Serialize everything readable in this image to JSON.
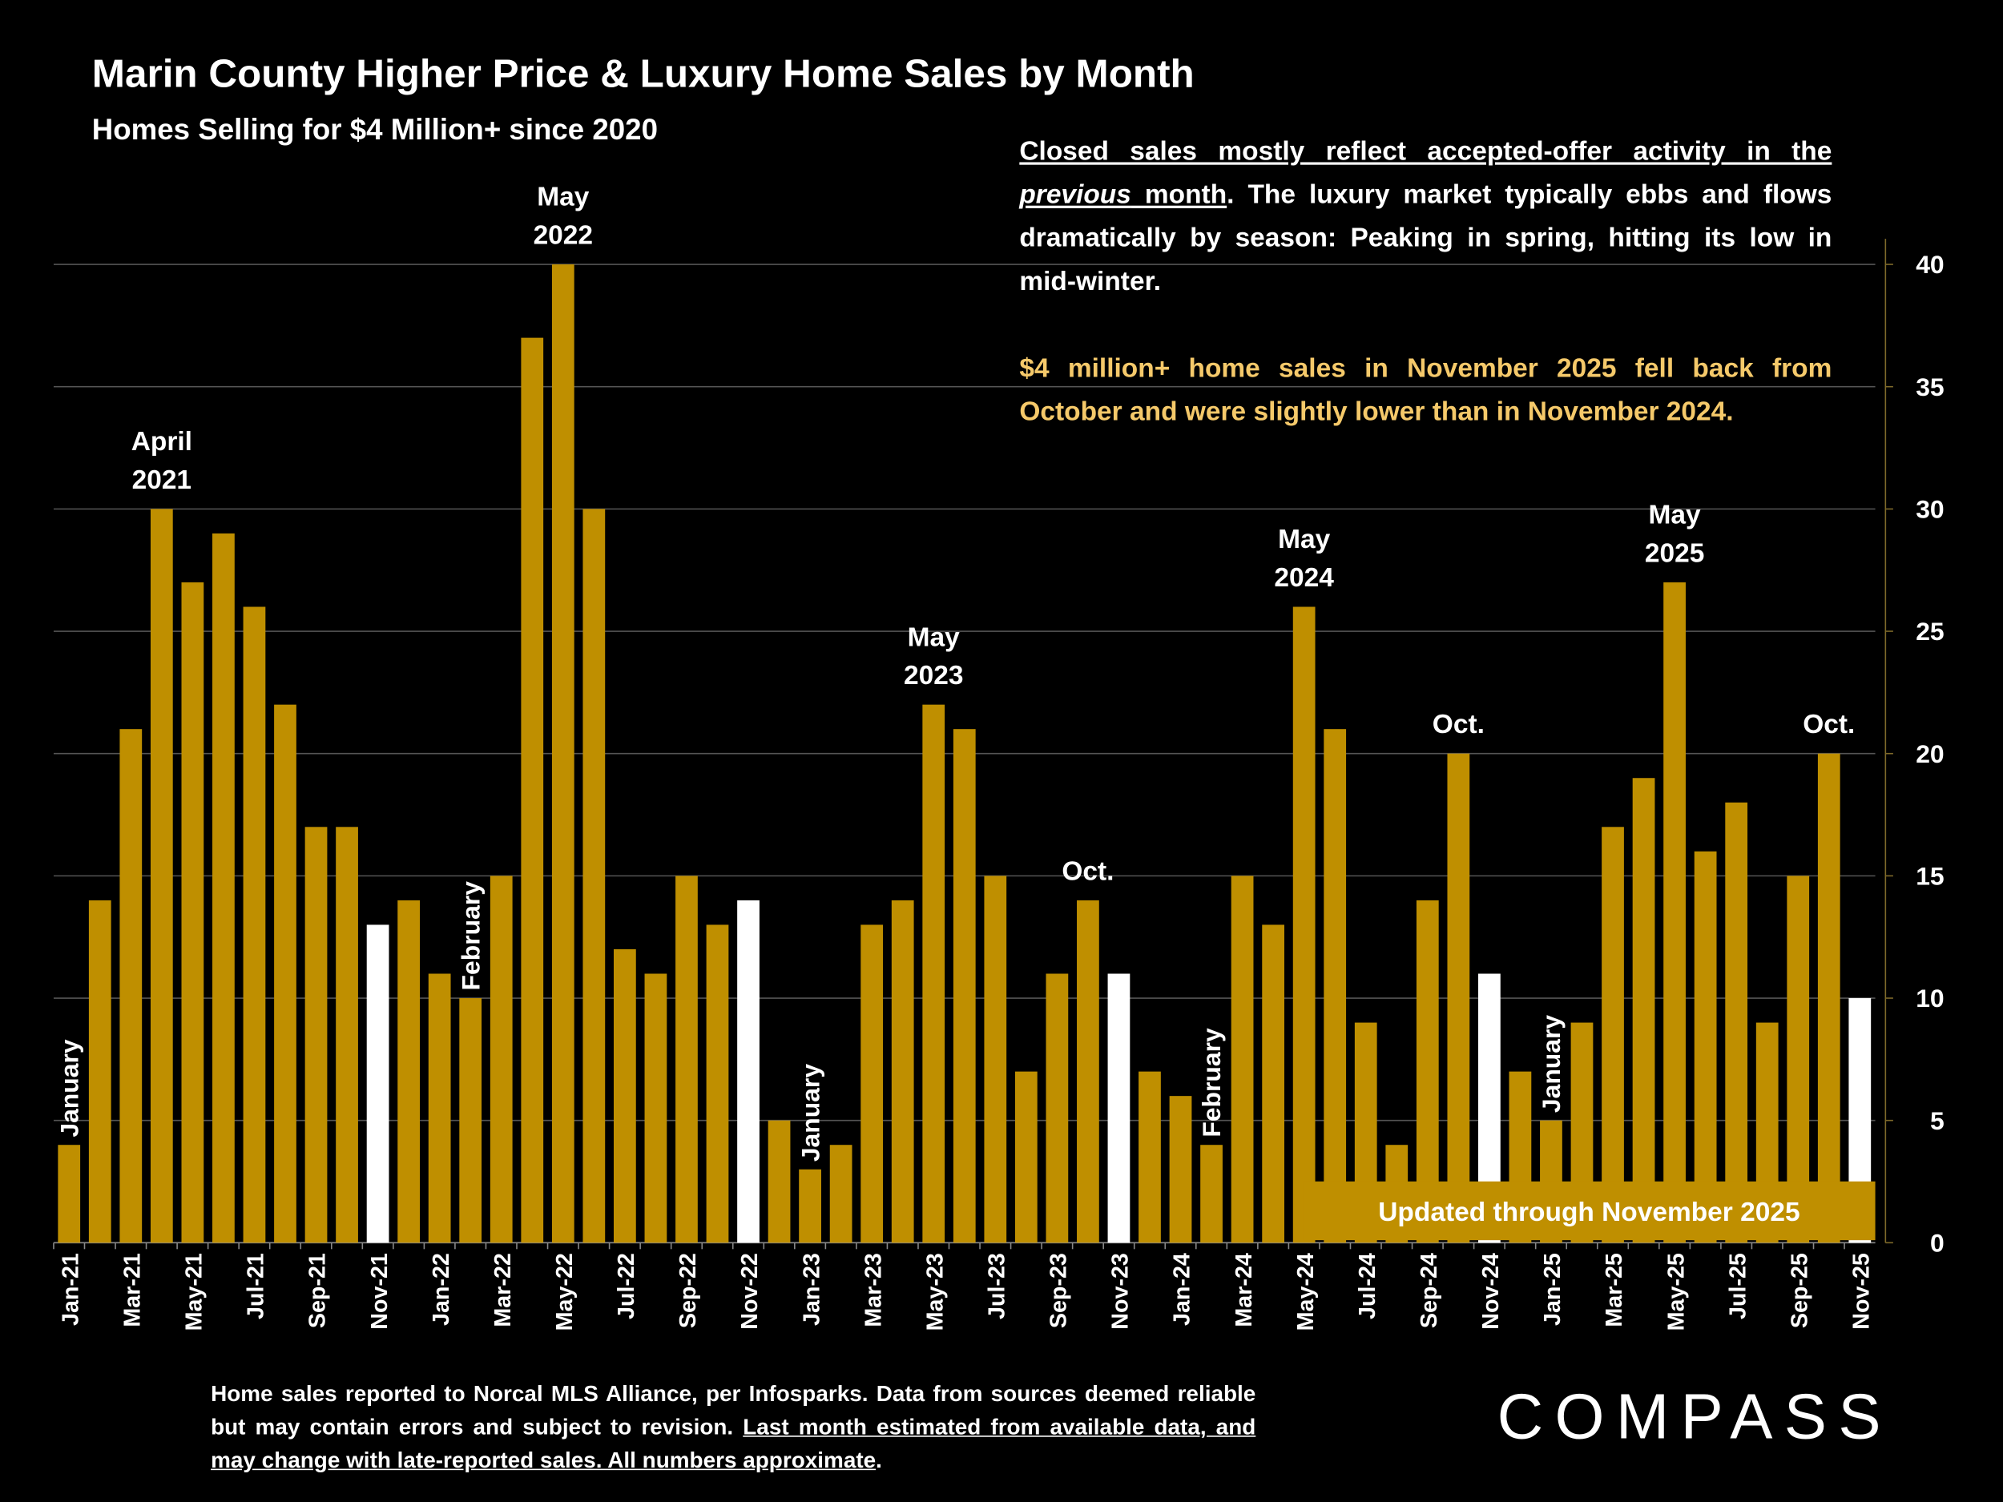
{
  "header": {
    "title": "Marin County Higher Price & Luxury Home Sales by Month",
    "subtitle": "Homes Selling for $4 Million+ since 2020"
  },
  "note": {
    "paragraph1": [
      {
        "text": "Closed sales mostly reflect accepted-offer activity in the ",
        "style": "underline"
      },
      {
        "text": "previous",
        "style": "underline-italic"
      },
      {
        "text": " month",
        "style": "underline"
      },
      {
        "text": ". The luxury market typically ebbs and flows dramatically by season: Peaking in spring, hitting its low in mid-winter.",
        "style": "plain"
      }
    ],
    "paragraph2": "$4 million+ home sales in November 2025 fell back from October and were slightly lower than in November 2024."
  },
  "badge": "Updated through November 2025",
  "footnote": [
    {
      "text": "Home sales reported to Norcal MLS Alliance, per Infosparks. Data from sources deemed reliable but may contain errors and subject to revision. ",
      "style": "plain"
    },
    {
      "text": "Last month estimated from available data, and may change with late-reported sales. All numbers approximate",
      "style": "underline"
    },
    {
      "text": ".",
      "style": "plain"
    }
  ],
  "logo": "COMPASS",
  "chart_data": {
    "type": "bar",
    "ylim": [
      0,
      40
    ],
    "yticks": [
      0,
      5,
      10,
      15,
      20,
      25,
      30,
      35,
      40
    ],
    "grid": true,
    "y_axis_side": "right",
    "categories": [
      "Jan-21",
      null,
      "Mar-21",
      null,
      "May-21",
      null,
      "Jul-21",
      null,
      "Sep-21",
      null,
      "Nov-21",
      null,
      "Jan-22",
      null,
      "Mar-22",
      null,
      "May-22",
      null,
      "Jul-22",
      null,
      "Sep-22",
      null,
      "Nov-22",
      null,
      "Jan-23",
      null,
      "Mar-23",
      null,
      "May-23",
      null,
      "Jul-23",
      null,
      "Sep-23",
      null,
      "Nov-23",
      null,
      "Jan-24",
      null,
      "Mar-24",
      null,
      "May-24",
      null,
      "Jul-24",
      null,
      "Sep-24",
      null,
      "Nov-24",
      null,
      "Jan-25",
      null,
      "Mar-25",
      null,
      "May-25",
      null,
      "Jul-25",
      null,
      "Sep-25",
      null,
      "Nov-25"
    ],
    "values": [
      4,
      14,
      21,
      30,
      27,
      29,
      26,
      22,
      17,
      17,
      13,
      14,
      11,
      10,
      15,
      37,
      40,
      30,
      12,
      11,
      15,
      13,
      14,
      5,
      3,
      4,
      13,
      14,
      22,
      21,
      15,
      7,
      11,
      14,
      11,
      7,
      6,
      4,
      15,
      13,
      26,
      21,
      9,
      4,
      14,
      20,
      11,
      7,
      5,
      9,
      17,
      19,
      27,
      16,
      18,
      9,
      15,
      20,
      10
    ],
    "colors": [
      "#bf8f00",
      "#bf8f00",
      "#bf8f00",
      "#bf8f00",
      "#bf8f00",
      "#bf8f00",
      "#bf8f00",
      "#bf8f00",
      "#bf8f00",
      "#bf8f00",
      "#ffffff",
      "#bf8f00",
      "#bf8f00",
      "#bf8f00",
      "#bf8f00",
      "#bf8f00",
      "#bf8f00",
      "#bf8f00",
      "#bf8f00",
      "#bf8f00",
      "#bf8f00",
      "#bf8f00",
      "#ffffff",
      "#bf8f00",
      "#bf8f00",
      "#bf8f00",
      "#bf8f00",
      "#bf8f00",
      "#bf8f00",
      "#bf8f00",
      "#bf8f00",
      "#bf8f00",
      "#bf8f00",
      "#bf8f00",
      "#ffffff",
      "#bf8f00",
      "#bf8f00",
      "#bf8f00",
      "#bf8f00",
      "#bf8f00",
      "#bf8f00",
      "#bf8f00",
      "#bf8f00",
      "#bf8f00",
      "#bf8f00",
      "#bf8f00",
      "#ffffff",
      "#bf8f00",
      "#bf8f00",
      "#bf8f00",
      "#bf8f00",
      "#bf8f00",
      "#bf8f00",
      "#bf8f00",
      "#bf8f00",
      "#bf8f00",
      "#bf8f00",
      "#bf8f00",
      "#ffffff"
    ],
    "bar_labels": [
      null,
      null,
      null,
      "April 2021",
      null,
      null,
      null,
      null,
      null,
      null,
      null,
      null,
      null,
      null,
      null,
      null,
      "May 2022",
      null,
      null,
      null,
      null,
      null,
      null,
      null,
      null,
      null,
      null,
      null,
      "May 2023",
      null,
      null,
      null,
      null,
      "Oct.",
      null,
      null,
      null,
      null,
      null,
      null,
      "May 2024",
      null,
      null,
      null,
      null,
      "Oct.",
      null,
      null,
      null,
      null,
      null,
      null,
      "May 2025",
      null,
      null,
      null,
      null,
      "Oct.",
      null
    ],
    "bar_labels_vertical": [
      "January",
      null,
      null,
      null,
      null,
      null,
      null,
      null,
      null,
      null,
      null,
      null,
      null,
      "February",
      null,
      null,
      null,
      null,
      null,
      null,
      null,
      null,
      null,
      null,
      "January",
      null,
      null,
      null,
      null,
      null,
      null,
      null,
      null,
      null,
      null,
      null,
      null,
      "February",
      null,
      null,
      null,
      null,
      null,
      null,
      null,
      null,
      null,
      null,
      "January",
      null,
      null,
      null,
      null,
      null,
      null,
      null,
      null,
      null,
      null
    ]
  }
}
